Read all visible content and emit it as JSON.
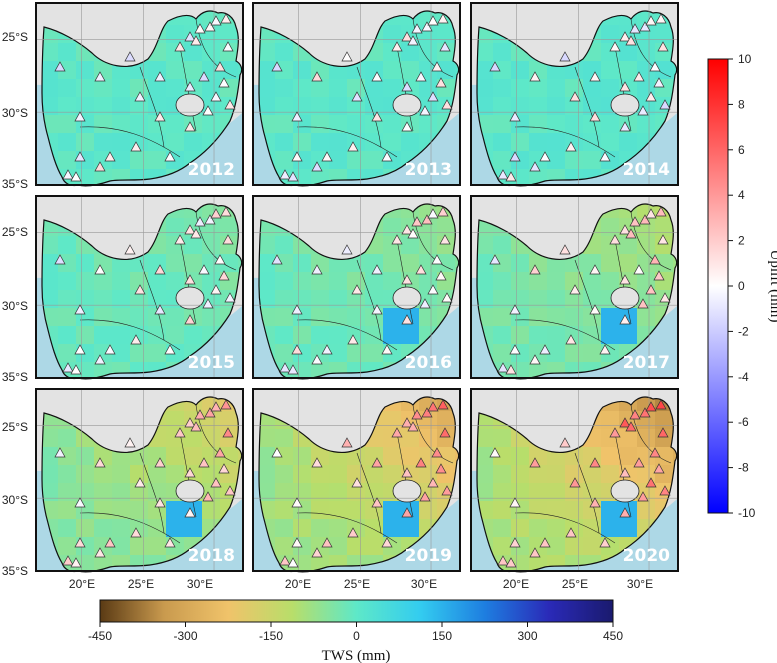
{
  "panels": [
    {
      "year": "2012",
      "anomaly": 0
    },
    {
      "year": "2013",
      "anomaly": 5
    },
    {
      "year": "2014",
      "anomaly": 10
    },
    {
      "year": "2015",
      "anomaly": -30
    },
    {
      "year": "2016",
      "anomaly": -50
    },
    {
      "year": "2017",
      "anomaly": -80
    },
    {
      "year": "2018",
      "anomaly": -140
    },
    {
      "year": "2019",
      "anomaly": -220
    },
    {
      "year": "2020",
      "anomaly": -260
    }
  ],
  "lat_labels": [
    "25°S",
    "30°S",
    "35°S"
  ],
  "lon_labels": [
    "20°E",
    "25°E",
    "30°E"
  ],
  "tws_colorbar": {
    "ticks": [
      "-450",
      "-300",
      "-150",
      "0",
      "150",
      "300",
      "450"
    ],
    "label": "TWS (mm)",
    "colors": [
      "#5a3a14",
      "#c99a4e",
      "#f0c36a",
      "#b8de6a",
      "#5ee8c8",
      "#33ccf0",
      "#1e7ee0",
      "#2a2ab8",
      "#1a1a6e"
    ]
  },
  "uplift_colorbar": {
    "ticks": [
      "10",
      "8",
      "6",
      "4",
      "2",
      "0",
      "-2",
      "-4",
      "-6",
      "-8",
      "-10"
    ],
    "label": "Uplift (mm)",
    "colors": [
      "#ff0000",
      "#ffffff",
      "#0000ff"
    ]
  },
  "colors": {
    "ocean": "#add8e6",
    "land_outside": "#e3e3e3",
    "base_land": "#4de8d6",
    "border": "#111111"
  }
}
